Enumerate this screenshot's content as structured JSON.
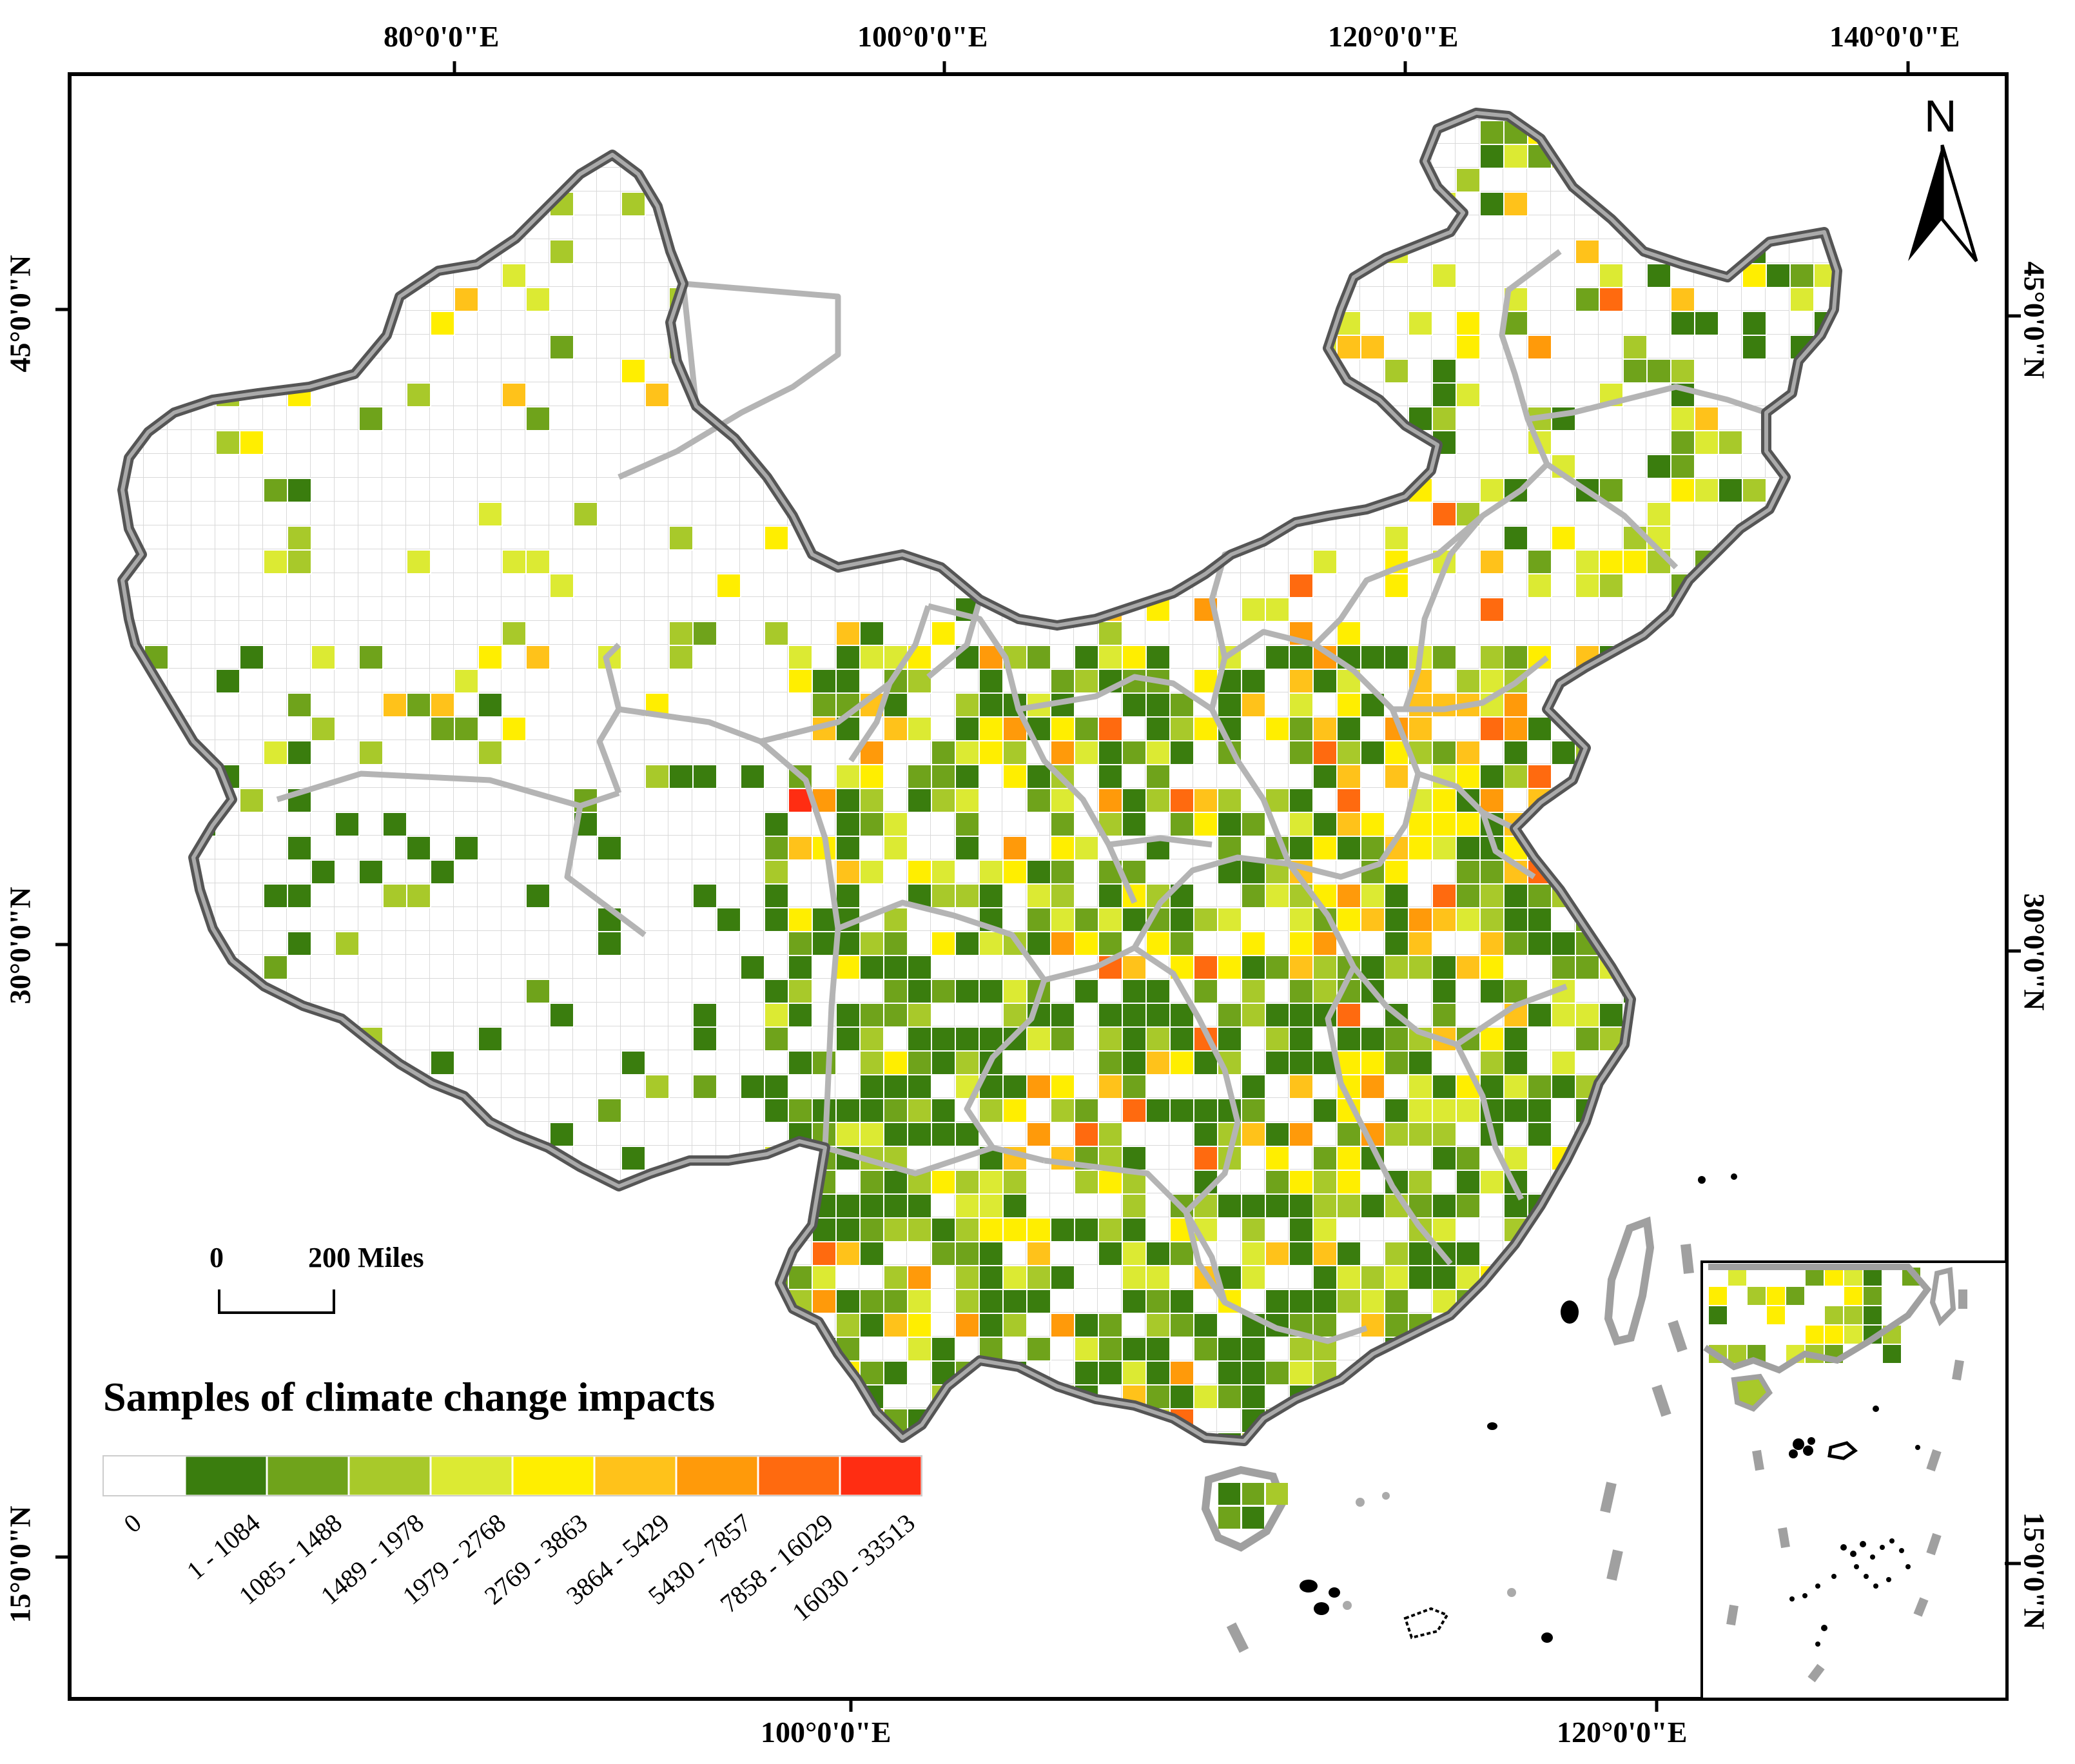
{
  "map": {
    "top_longitudes": [
      "80°0'0\"E",
      "100°0'0\"E",
      "120°0'0\"E",
      "140°0'0\"E"
    ],
    "bottom_longitudes": [
      "100°0'0\"E",
      "120°0'0\"E"
    ],
    "left_latitudes": [
      "45°0'0\"N",
      "30°0'0\"N",
      "15°0'0\"N"
    ],
    "right_latitudes": [
      "45°0'0\"N",
      "30°0'0\"N",
      "15°0'0\"N"
    ],
    "north_label": "N",
    "scale_bar": {
      "zero": "0",
      "distance": "200 Miles"
    }
  },
  "legend": {
    "title": "Samples of climate change impacts",
    "classes": [
      {
        "label": "0",
        "color": "#ffffff"
      },
      {
        "label": "1 - 1084",
        "color": "#3a7d0e"
      },
      {
        "label": "1085 - 1488",
        "color": "#6fa31b"
      },
      {
        "label": "1489 - 1978",
        "color": "#a8c92a"
      },
      {
        "label": "1979 - 2768",
        "color": "#dcea33"
      },
      {
        "label": "2769 - 3863",
        "color": "#ffee00"
      },
      {
        "label": "3864 - 5429",
        "color": "#ffc21a"
      },
      {
        "label": "5430 - 7857",
        "color": "#ff9a0a"
      },
      {
        "label": "7858 - 16029",
        "color": "#ff6a0f"
      },
      {
        "label": "16030 - 33513",
        "color": "#ff2d12"
      }
    ]
  },
  "colors": {
    "border_dark": "#555555",
    "border_light": "#b4b4b4",
    "grid": "#dddddd"
  }
}
